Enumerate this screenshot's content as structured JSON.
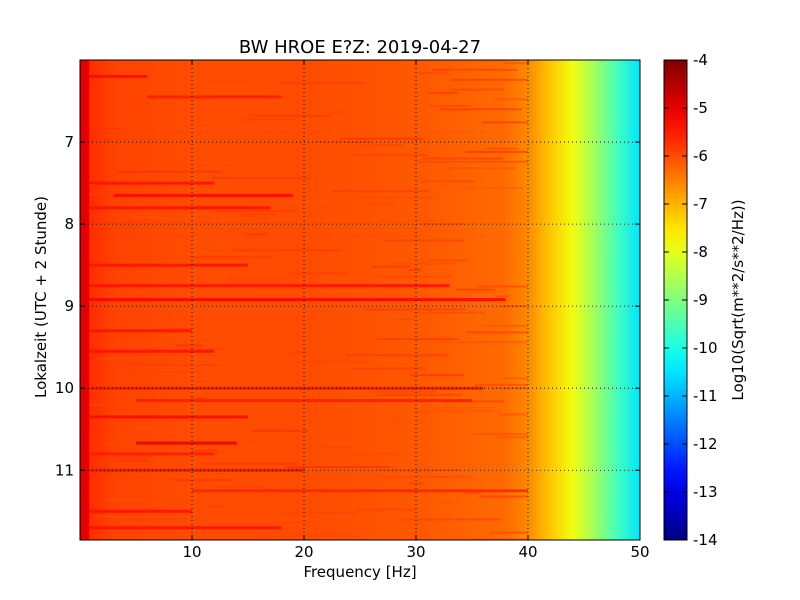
{
  "chart_data": {
    "type": "heatmap",
    "title": "BW HROE E?Z: 2019-04-27",
    "xlabel": "Frequency [Hz]",
    "ylabel": "Lokalzeit (UTC + 2 Stunde)",
    "xlim": [
      0.0,
      50.0
    ],
    "ylim": [
      11.85,
      6.0
    ],
    "x_ticks": [
      {
        "value": 10,
        "label": "10"
      },
      {
        "value": 20,
        "label": "20"
      },
      {
        "value": 30,
        "label": "30"
      },
      {
        "value": 40,
        "label": "40"
      },
      {
        "value": 50,
        "label": "50"
      }
    ],
    "y_ticks": [
      {
        "value": 7,
        "label": "7"
      },
      {
        "value": 8,
        "label": "8"
      },
      {
        "value": 9,
        "label": "9"
      },
      {
        "value": 10,
        "label": "10"
      },
      {
        "value": 11,
        "label": "11"
      }
    ],
    "grid": true,
    "colormap": "jet",
    "colorbar": {
      "label": "Log10(Sqrt(m**2/s**2/Hz))",
      "range": [
        -14,
        -4
      ],
      "ticks": [
        "-4",
        "-5",
        "-6",
        "-7",
        "-8",
        "-9",
        "-10",
        "-11",
        "-12",
        "-13",
        "-14"
      ]
    },
    "spectrum_profile": [
      {
        "freq": 0.0,
        "value": -5.2
      },
      {
        "freq": 1.0,
        "value": -5.7
      },
      {
        "freq": 3.0,
        "value": -5.9
      },
      {
        "freq": 10.0,
        "value": -6.0
      },
      {
        "freq": 20.0,
        "value": -6.0
      },
      {
        "freq": 30.0,
        "value": -6.1
      },
      {
        "freq": 38.0,
        "value": -6.3
      },
      {
        "freq": 40.0,
        "value": -6.6
      },
      {
        "freq": 42.0,
        "value": -7.2
      },
      {
        "freq": 44.0,
        "value": -7.9
      },
      {
        "freq": 46.0,
        "value": -8.7
      },
      {
        "freq": 48.0,
        "value": -9.6
      },
      {
        "freq": 50.0,
        "value": -10.5
      }
    ],
    "bands": [
      {
        "time": 6.2,
        "f_from": 0,
        "f_to": 6,
        "value": -5.3
      },
      {
        "time": 6.45,
        "f_from": 6,
        "f_to": 18,
        "value": -5.5
      },
      {
        "time": 7.5,
        "f_from": 0,
        "f_to": 12,
        "value": -5.4
      },
      {
        "time": 7.65,
        "f_from": 3,
        "f_to": 19,
        "value": -5.3
      },
      {
        "time": 7.8,
        "f_from": 0,
        "f_to": 17,
        "value": -5.4
      },
      {
        "time": 8.5,
        "f_from": 0,
        "f_to": 15,
        "value": -5.4
      },
      {
        "time": 8.75,
        "f_from": 0,
        "f_to": 33,
        "value": -5.4
      },
      {
        "time": 8.92,
        "f_from": 0,
        "f_to": 38,
        "value": -5.2
      },
      {
        "time": 9.3,
        "f_from": 0,
        "f_to": 10,
        "value": -5.4
      },
      {
        "time": 9.55,
        "f_from": 0,
        "f_to": 12,
        "value": -5.4
      },
      {
        "time": 10.0,
        "f_from": 0,
        "f_to": 36,
        "value": -5.4
      },
      {
        "time": 10.15,
        "f_from": 5,
        "f_to": 35,
        "value": -5.5
      },
      {
        "time": 10.35,
        "f_from": 0,
        "f_to": 15,
        "value": -5.3
      },
      {
        "time": 10.67,
        "f_from": 5,
        "f_to": 14,
        "value": -5.0
      },
      {
        "time": 10.8,
        "f_from": 0,
        "f_to": 12,
        "value": -5.5
      },
      {
        "time": 11.0,
        "f_from": 0,
        "f_to": 20,
        "value": -5.4
      },
      {
        "time": 11.25,
        "f_from": 10,
        "f_to": 40,
        "value": -5.6
      },
      {
        "time": 11.5,
        "f_from": 0,
        "f_to": 10,
        "value": -5.4
      },
      {
        "time": 11.7,
        "f_from": 0,
        "f_to": 18,
        "value": -5.4
      }
    ]
  }
}
